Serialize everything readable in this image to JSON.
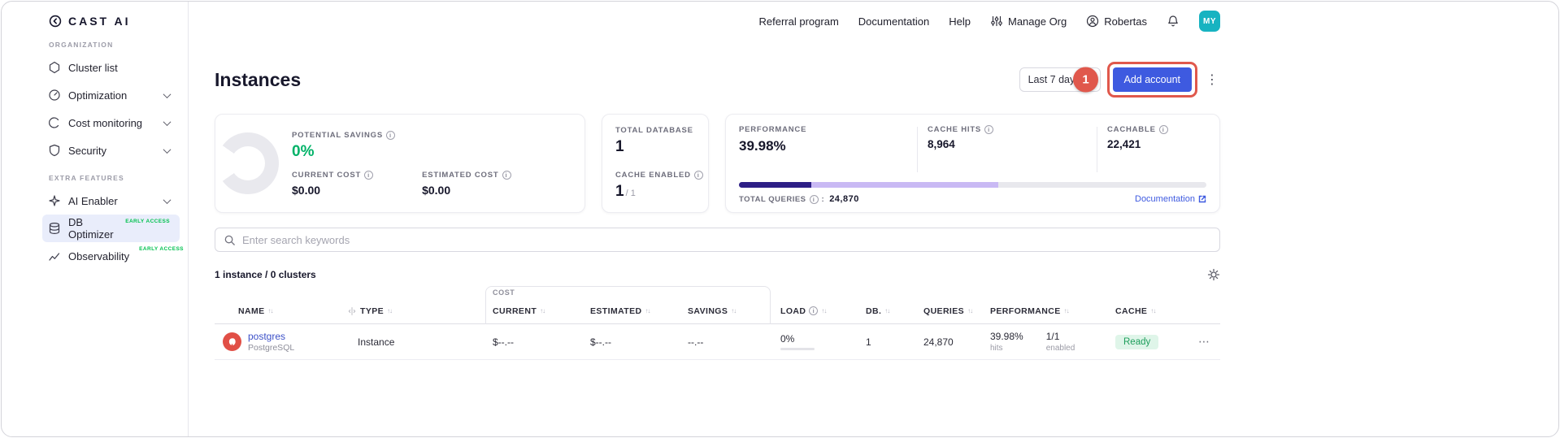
{
  "colors": {
    "primary_blue": "#3E5AE0",
    "annotation_red": "#E0584C",
    "success_green": "#00B268",
    "early_access_green": "#00C14E",
    "avatar_teal": "#17B3C1",
    "progress_dark": "#2D1F86",
    "progress_light": "#C9B9F4",
    "ready_badge_bg": "#DFF5E9",
    "ready_badge_text": "#1E9E5C"
  },
  "brand": {
    "name": "CAST AI"
  },
  "sidebar": {
    "sections": [
      {
        "label": "ORGANIZATION",
        "items": [
          {
            "label": "Cluster list"
          },
          {
            "label": "Optimization"
          },
          {
            "label": "Cost monitoring"
          },
          {
            "label": "Security"
          }
        ]
      },
      {
        "label": "EXTRA FEATURES",
        "items": [
          {
            "label": "AI Enabler"
          },
          {
            "label": "DB Optimizer",
            "badge": "EARLY ACCESS"
          },
          {
            "label": "Observability",
            "badge": "EARLY ACCESS"
          }
        ]
      }
    ]
  },
  "topnav": {
    "referral": "Referral program",
    "documentation": "Documentation",
    "help": "Help",
    "manage_org": "Manage Org",
    "user": "Robertas",
    "avatar_initials": "MY"
  },
  "page": {
    "title": "Instances",
    "date_range": "Last 7 days",
    "add_account_label": "Add account",
    "annotation_step": "1"
  },
  "summary": {
    "potential_savings": {
      "label": "POTENTIAL SAVINGS",
      "value": "0%"
    },
    "current_cost": {
      "label": "CURRENT COST",
      "value": "$0.00"
    },
    "estimated_cost": {
      "label": "ESTIMATED COST",
      "value": "$0.00"
    },
    "total_database": {
      "label": "TOTAL DATABASE",
      "value": "1"
    },
    "cache_enabled": {
      "label": "CACHE ENABLED",
      "value": "1",
      "suffix": "/ 1"
    },
    "performance": {
      "label": "PERFORMANCE",
      "value": "39.98%"
    },
    "cache_hits": {
      "label": "CACHE HITS",
      "value": "8,964"
    },
    "cachable": {
      "label": "CACHABLE",
      "value": "22,421"
    },
    "total_queries": {
      "label": "TOTAL QUERIES",
      "value": "24,870"
    },
    "documentation_link": "Documentation",
    "query_bar": {
      "cache_hits_pct": 15.5,
      "cachable_pct": 40
    }
  },
  "search": {
    "placeholder": "Enter search keywords"
  },
  "table": {
    "summary": "1 instance / 0 clusters",
    "cost_group_label": "COST",
    "columns": [
      "NAME",
      "TYPE",
      "CURRENT",
      "ESTIMATED",
      "SAVINGS",
      "LOAD",
      "DB.",
      "QUERIES",
      "PERFORMANCE",
      "CACHE"
    ],
    "row": {
      "name": "postgres",
      "engine": "PostgreSQL",
      "type": "Instance",
      "current_cost": "$--.--",
      "estimated_cost": "$--.--",
      "savings": "--.--",
      "load": "0%",
      "load_pct": 0,
      "db_count": "1",
      "queries": "24,870",
      "performance": "39.98%",
      "performance_sub": "hits",
      "cache_enabled": "1/1",
      "cache_enabled_sub": "enabled",
      "cache_status": "Ready"
    }
  }
}
